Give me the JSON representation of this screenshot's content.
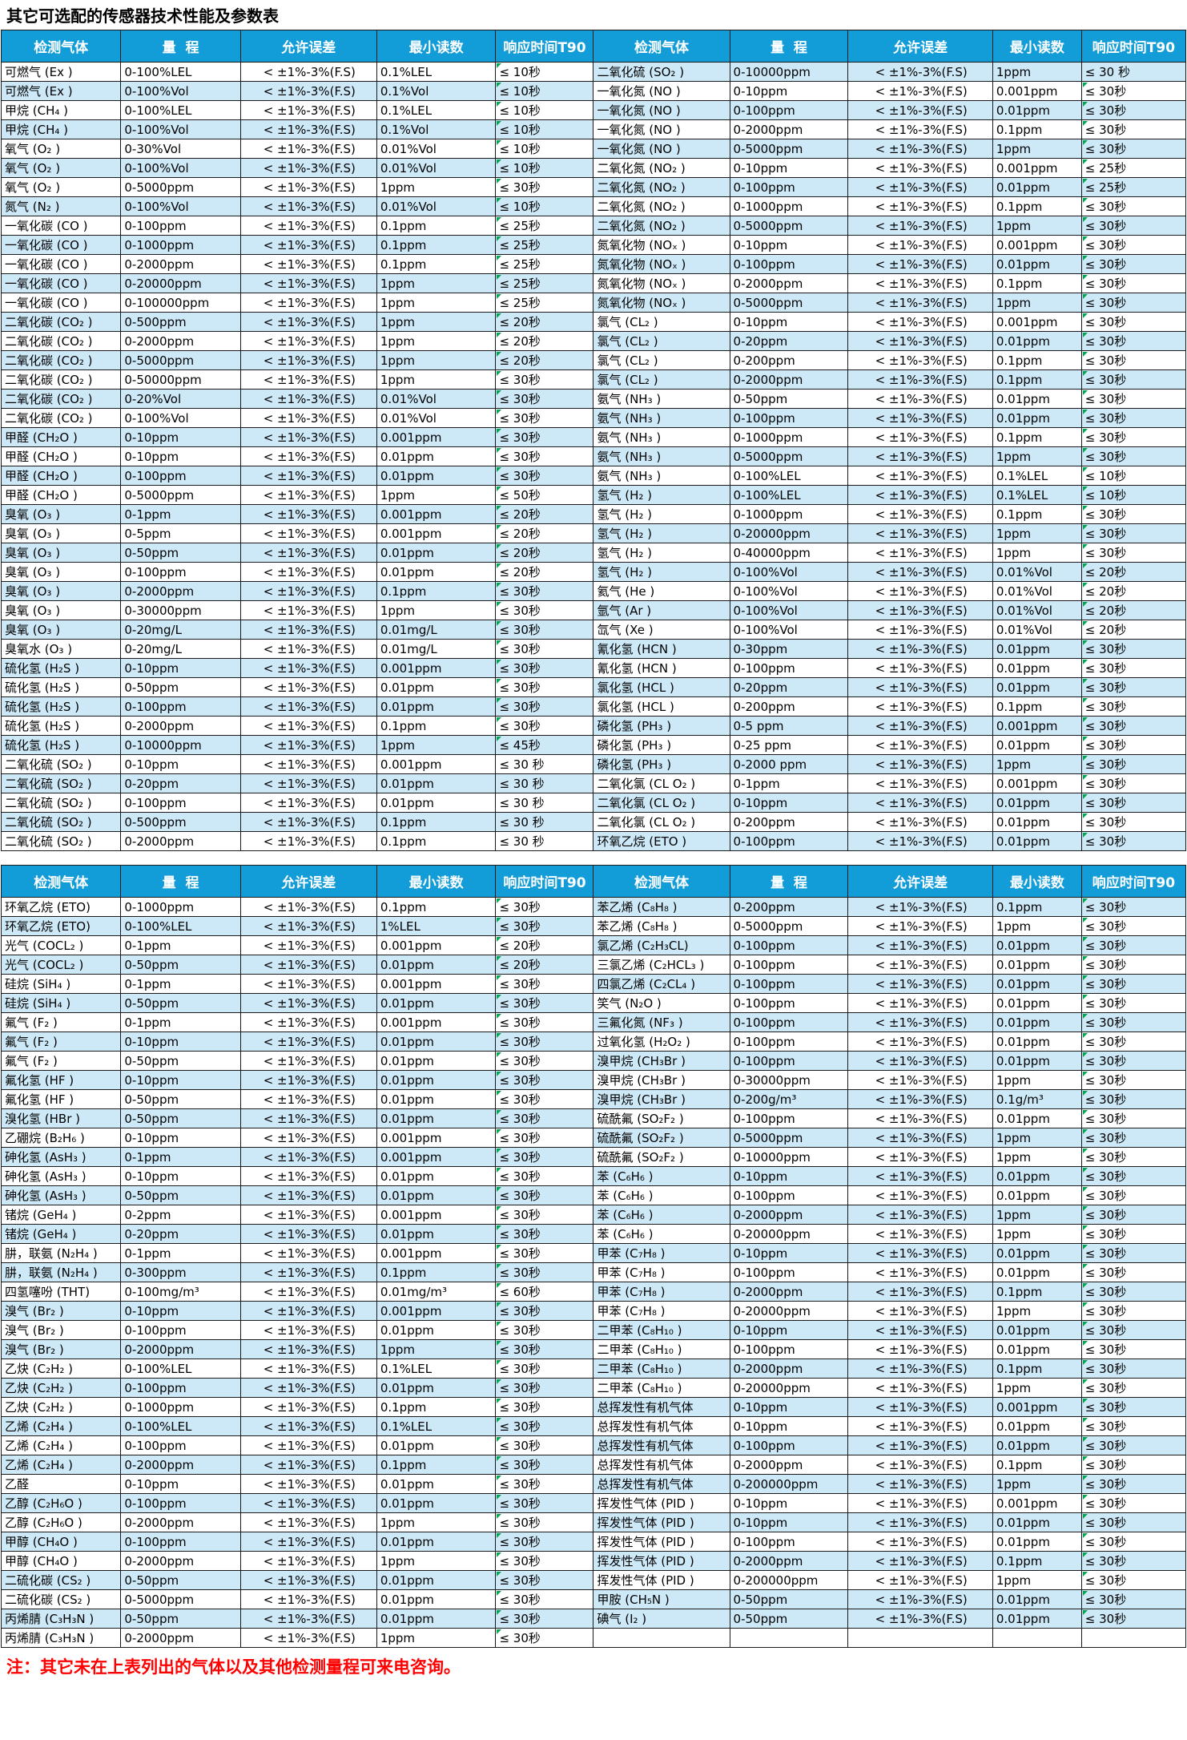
{
  "title": "其它可选配的传感器技术性能及参数表",
  "note": "注：其它未在上表列出的气体以及其他检测量程可来电咨询。",
  "columns": [
    "检测气体",
    "量  程",
    "允许误差",
    "最小读数",
    "响应时间T90"
  ],
  "tolerance": "<  ±1%-3%(F.S)",
  "colors": {
    "header_bg": "#129dd9",
    "row_alt": "#cde8f7",
    "border": "#1a1a1a",
    "note": "#ff0000",
    "marker": "#00a651"
  },
  "tables": [
    {
      "right_extra_blue": [],
      "left": [
        [
          "可燃气 (Ex )",
          "0-100%LEL",
          "0.1%LEL",
          "≤ 10秒"
        ],
        [
          "可燃气 (Ex )",
          "0-100%Vol",
          "0.1%Vol",
          "≤ 10秒"
        ],
        [
          "甲烷 (CH₄ )",
          "0-100%LEL",
          "0.1%LEL",
          "≤ 10秒"
        ],
        [
          "甲烷 (CH₄ )",
          "0-100%Vol",
          "0.1%Vol",
          "≤ 10秒"
        ],
        [
          "氧气 (O₂ )",
          "0-30%Vol",
          "0.01%Vol",
          "≤ 10秒"
        ],
        [
          "氧气 (O₂ )",
          "0-100%Vol",
          "0.01%Vol",
          "≤ 10秒"
        ],
        [
          "氧气 (O₂ )",
          "0-5000ppm",
          "1ppm",
          "≤ 30秒"
        ],
        [
          "氮气 (N₂ )",
          "0-100%Vol",
          "0.01%Vol",
          "≤ 10秒"
        ],
        [
          "一氧化碳 (CO )",
          "0-100ppm",
          "0.1ppm",
          "≤ 25秒"
        ],
        [
          "一氧化碳 (CO )",
          "0-1000ppm",
          "0.1ppm",
          "≤ 25秒"
        ],
        [
          "一氧化碳 (CO )",
          "0-2000ppm",
          "0.1ppm",
          "≤ 25秒"
        ],
        [
          "一氧化碳 (CO )",
          "0-20000ppm",
          "1ppm",
          "≤ 25秒"
        ],
        [
          "一氧化碳 (CO )",
          "0-100000ppm",
          "1ppm",
          "≤ 25秒"
        ],
        [
          "二氧化碳 (CO₂ )",
          "0-500ppm",
          "1ppm",
          "≤ 20秒"
        ],
        [
          "二氧化碳 (CO₂ )",
          "0-2000ppm",
          "1ppm",
          "≤ 20秒"
        ],
        [
          "二氧化碳 (CO₂ )",
          "0-5000ppm",
          "1ppm",
          "≤ 20秒"
        ],
        [
          "二氧化碳 (CO₂ )",
          "0-50000ppm",
          "1ppm",
          "≤ 30秒"
        ],
        [
          "二氧化碳 (CO₂ )",
          "0-20%Vol",
          "0.01%Vol",
          "≤ 30秒"
        ],
        [
          "二氧化碳 (CO₂ )",
          "0-100%Vol",
          "0.01%Vol",
          "≤ 30秒"
        ],
        [
          "甲醛 (CH₂O )",
          "0-10ppm",
          "0.001ppm",
          "≤ 30秒"
        ],
        [
          "甲醛 (CH₂O )",
          "0-10ppm",
          "0.01ppm",
          "≤ 30秒"
        ],
        [
          "甲醛 (CH₂O )",
          "0-100ppm",
          "0.01ppm",
          "≤ 30秒"
        ],
        [
          "甲醛 (CH₂O )",
          "0-5000ppm",
          "1ppm",
          "≤ 50秒"
        ],
        [
          "臭氧 (O₃ )",
          "0-1ppm",
          "0.001ppm",
          "≤ 20秒"
        ],
        [
          "臭氧 (O₃ )",
          "0-5ppm",
          "0.001ppm",
          "≤ 20秒"
        ],
        [
          "臭氧 (O₃ )",
          "0-50ppm",
          "0.01ppm",
          "≤ 20秒"
        ],
        [
          "臭氧 (O₃ )",
          "0-100ppm",
          "0.01ppm",
          "≤ 20秒"
        ],
        [
          "臭氧 (O₃ )",
          "0-2000ppm",
          "0.1ppm",
          "≤ 30秒"
        ],
        [
          "臭氧 (O₃ )",
          "0-30000ppm",
          "1ppm",
          "≤ 30秒"
        ],
        [
          "臭氧 (O₃ )",
          "0-20mg/L",
          "0.01mg/L",
          "≤ 30秒"
        ],
        [
          "臭氧水 (O₃ )",
          "0-20mg/L",
          "0.01mg/L",
          "≤ 30秒"
        ],
        [
          "硫化氢 (H₂S )",
          "0-10ppm",
          "0.001ppm",
          "≤ 30秒"
        ],
        [
          "硫化氢 (H₂S )",
          "0-50ppm",
          "0.01ppm",
          "≤ 30秒"
        ],
        [
          "硫化氢 (H₂S )",
          "0-100ppm",
          "0.01ppm",
          "≤ 30秒"
        ],
        [
          "硫化氢 (H₂S )",
          "0-2000ppm",
          "0.1ppm",
          "≤ 30秒"
        ],
        [
          "硫化氢 (H₂S )",
          "0-10000ppm",
          "1ppm",
          "≤ 45秒"
        ],
        [
          "二氧化硫 (SO₂ )",
          "0-10ppm",
          "0.001ppm",
          "≤ 30 秒"
        ],
        [
          "二氧化硫 (SO₂ )",
          "0-20ppm",
          "0.01ppm",
          "≤ 30 秒"
        ],
        [
          "二氧化硫 (SO₂ )",
          "0-100ppm",
          "0.01ppm",
          "≤ 30 秒"
        ],
        [
          "二氧化硫 (SO₂ )",
          "0-500ppm",
          "0.1ppm",
          "≤ 30 秒"
        ],
        [
          "二氧化硫 (SO₂ )",
          "0-2000ppm",
          "0.1ppm",
          "≤ 30 秒"
        ]
      ],
      "right": [
        [
          "二氧化硫 (SO₂ )",
          "0-10000ppm",
          "1ppm",
          "≤ 30 秒"
        ],
        [
          "一氧化氮 (NO )",
          "0-10ppm",
          "0.001ppm",
          "≤ 30秒"
        ],
        [
          "一氧化氮 (NO )",
          "0-100ppm",
          "0.01ppm",
          "≤ 30秒"
        ],
        [
          "一氧化氮 (NO )",
          "0-2000ppm",
          "0.1ppm",
          "≤ 30秒"
        ],
        [
          "一氧化氮 (NO )",
          "0-5000ppm",
          "1ppm",
          "≤ 30秒"
        ],
        [
          "二氧化氮 (NO₂ )",
          "0-10ppm",
          "0.001ppm",
          "≤ 25秒"
        ],
        [
          "二氧化氮 (NO₂ )",
          "0-100ppm",
          "0.01ppm",
          "≤ 25秒"
        ],
        [
          "二氧化氮 (NO₂ )",
          "0-1000ppm",
          "0.1ppm",
          "≤ 30秒"
        ],
        [
          "二氧化氮 (NO₂ )",
          "0-5000ppm",
          "1ppm",
          "≤ 30秒"
        ],
        [
          "氮氧化物 (NOₓ )",
          "0-10ppm",
          "0.001ppm",
          "≤ 30秒"
        ],
        [
          "氮氧化物 (NOₓ )",
          "0-100ppm",
          "0.01ppm",
          "≤ 30秒"
        ],
        [
          "氮氧化物 (NOₓ )",
          "0-2000ppm",
          "0.1ppm",
          "≤ 30秒"
        ],
        [
          "氮氧化物 (NOₓ )",
          "0-5000ppm",
          "1ppm",
          "≤ 30秒"
        ],
        [
          "氯气 (CL₂ )",
          "0-10ppm",
          "0.001ppm",
          "≤ 30秒"
        ],
        [
          "氯气 (CL₂ )",
          "0-20ppm",
          "0.01ppm",
          "≤ 30秒"
        ],
        [
          "氯气 (CL₂ )",
          "0-200ppm",
          "0.1ppm",
          "≤ 30秒"
        ],
        [
          "氯气 (CL₂ )",
          "0-2000ppm",
          "0.1ppm",
          "≤ 30秒"
        ],
        [
          "氨气 (NH₃ )",
          "0-50ppm",
          "0.01ppm",
          "≤ 30秒"
        ],
        [
          "氨气 (NH₃ )",
          "0-100ppm",
          "0.01ppm",
          "≤ 30秒"
        ],
        [
          "氨气 (NH₃ )",
          "0-1000ppm",
          "0.1ppm",
          "≤ 30秒"
        ],
        [
          "氨气 (NH₃ )",
          "0-5000ppm",
          "1ppm",
          "≤ 30秒"
        ],
        [
          "氨气 (NH₃ )",
          "0-100%LEL",
          "0.1%LEL",
          "≤ 10秒"
        ],
        [
          "氢气 (H₂ )",
          "0-100%LEL",
          "0.1%LEL",
          "≤ 10秒"
        ],
        [
          "氢气 (H₂ )",
          "0-1000ppm",
          "0.1ppm",
          "≤ 30秒"
        ],
        [
          "氢气 (H₂ )",
          "0-20000ppm",
          "1ppm",
          "≤ 30秒"
        ],
        [
          "氢气 (H₂ )",
          "0-40000ppm",
          "1ppm",
          "≤ 30秒"
        ],
        [
          "氢气 (H₂ )",
          "0-100%Vol",
          "0.01%Vol",
          "≤ 20秒"
        ],
        [
          "氦气 (He )",
          "0-100%Vol",
          "0.01%Vol",
          "≤ 20秒"
        ],
        [
          "氩气 (Ar )",
          "0-100%Vol",
          "0.01%Vol",
          "≤ 20秒"
        ],
        [
          "氙气 (Xe )",
          "0-100%Vol",
          "0.01%Vol",
          "≤ 20秒"
        ],
        [
          "氰化氢 (HCN )",
          "0-30ppm",
          "0.01ppm",
          "≤ 30秒"
        ],
        [
          "氰化氢 (HCN )",
          "0-100ppm",
          "0.01ppm",
          "≤ 30秒"
        ],
        [
          "氯化氢 (HCL )",
          "0-20ppm",
          "0.01ppm",
          "≤ 30秒"
        ],
        [
          "氯化氢 (HCL )",
          "0-200ppm",
          "0.1ppm",
          "≤ 30秒"
        ],
        [
          "磷化氢 (PH₃ )",
          "0-5 ppm",
          "0.001ppm",
          "≤ 30秒"
        ],
        [
          "磷化氢 (PH₃ )",
          "0-25 ppm",
          "0.01ppm",
          "≤ 30秒"
        ],
        [
          "磷化氢 (PH₃ )",
          "0-2000 ppm",
          "1ppm",
          "≤ 30秒"
        ],
        [
          "二氧化氯 (CL O₂ )",
          "0-1ppm",
          "0.001ppm",
          "≤ 30秒"
        ],
        [
          "二氧化氯 (CL O₂ )",
          "0-10ppm",
          "0.01ppm",
          "≤ 30秒"
        ],
        [
          "二氧化氯 (CL O₂ )",
          "0-200ppm",
          "0.01ppm",
          "≤ 30秒"
        ],
        [
          "环氧乙烷 (ETO )",
          "0-100ppm",
          "0.01ppm",
          "≤ 30秒"
        ]
      ]
    },
    {
      "right_extra_blue": [
        37
      ],
      "left": [
        [
          "环氧乙烷 (ETO)",
          "0-1000ppm",
          "0.1ppm",
          "≤ 30秒"
        ],
        [
          "环氧乙烷 (ETO)",
          "0-100%LEL",
          "1%LEL",
          "≤ 30秒"
        ],
        [
          "光气 (COCL₂ )",
          "0-1ppm",
          "0.001ppm",
          "≤ 20秒"
        ],
        [
          "光气 (COCL₂ )",
          "0-50ppm",
          "0.01ppm",
          "≤ 20秒"
        ],
        [
          "硅烷 (SiH₄ )",
          "0-1ppm",
          "0.001ppm",
          "≤ 30秒"
        ],
        [
          "硅烷 (SiH₄ )",
          "0-50ppm",
          "0.01ppm",
          "≤ 30秒"
        ],
        [
          "氟气 (F₂ )",
          "0-1ppm",
          "0.001ppm",
          "≤ 30秒"
        ],
        [
          "氟气 (F₂ )",
          "0-10ppm",
          "0.01ppm",
          "≤ 30秒"
        ],
        [
          "氟气 (F₂ )",
          "0-50ppm",
          "0.01ppm",
          "≤ 30秒"
        ],
        [
          "氟化氢 (HF )",
          "0-10ppm",
          "0.01ppm",
          "≤ 30秒"
        ],
        [
          "氟化氢 (HF )",
          "0-50ppm",
          "0.01ppm",
          "≤ 30秒"
        ],
        [
          "溴化氢 (HBr )",
          "0-50ppm",
          "0.01ppm",
          "≤ 30秒"
        ],
        [
          "乙硼烷 (B₂H₆ )",
          "0-10ppm",
          "0.001ppm",
          "≤ 30秒"
        ],
        [
          "砷化氢 (AsH₃ )",
          "0-1ppm",
          "0.001ppm",
          "≤ 30秒"
        ],
        [
          "砷化氢 (AsH₃ )",
          "0-10ppm",
          "0.01ppm",
          "≤ 30秒"
        ],
        [
          "砷化氢 (AsH₃ )",
          "0-50ppm",
          "0.01ppm",
          "≤ 30秒"
        ],
        [
          "锗烷 (GeH₄ )",
          "0-2ppm",
          "0.001ppm",
          "≤ 30秒"
        ],
        [
          "锗烷 (GeH₄ )",
          "0-20ppm",
          "0.01ppm",
          "≤ 30秒"
        ],
        [
          "肼，联氨 (N₂H₄ )",
          "0-1ppm",
          "0.001ppm",
          "≤ 30秒"
        ],
        [
          "肼，联氨 (N₂H₄ )",
          "0-300ppm",
          "0.1ppm",
          "≤ 30秒"
        ],
        [
          "四氢噻吩 (THT)",
          "0-100mg/m³",
          "0.01mg/m³",
          "≤ 60秒"
        ],
        [
          "溴气 (Br₂ )",
          "0-10ppm",
          "0.001ppm",
          "≤ 30秒"
        ],
        [
          "溴气 (Br₂ )",
          "0-100ppm",
          "0.01ppm",
          "≤ 30秒"
        ],
        [
          "溴气 (Br₂ )",
          "0-2000ppm",
          "1ppm",
          "≤ 30秒"
        ],
        [
          "乙炔 (C₂H₂ )",
          "0-100%LEL",
          "0.1%LEL",
          "≤ 30秒"
        ],
        [
          "乙炔 (C₂H₂ )",
          "0-100ppm",
          "0.01ppm",
          "≤ 30秒"
        ],
        [
          "乙炔 (C₂H₂ )",
          "0-1000ppm",
          "0.1ppm",
          "≤ 30秒"
        ],
        [
          "乙烯 (C₂H₄ )",
          "0-100%LEL",
          "0.1%LEL",
          "≤ 30秒"
        ],
        [
          "乙烯 (C₂H₄ )",
          "0-100ppm",
          "0.01ppm",
          "≤ 30秒"
        ],
        [
          "乙烯 (C₂H₄ )",
          "0-2000ppm",
          "0.1ppm",
          "≤ 30秒"
        ],
        [
          "乙醛",
          "0-10ppm",
          "0.01ppm",
          "≤ 30秒"
        ],
        [
          "乙醇 (C₂H₆O )",
          "0-100ppm",
          "0.01ppm",
          "≤ 30秒"
        ],
        [
          "乙醇 (C₂H₆O )",
          "0-2000ppm",
          "1ppm",
          "≤ 30秒"
        ],
        [
          "甲醇 (CH₄O )",
          "0-100ppm",
          "0.01ppm",
          "≤ 30秒"
        ],
        [
          "甲醇 (CH₄O )",
          "0-2000ppm",
          "1ppm",
          "≤ 30秒"
        ],
        [
          "二硫化碳 (CS₂ )",
          "0-50ppm",
          "0.01ppm",
          "≤ 30秒"
        ],
        [
          "二硫化碳 (CS₂ )",
          "0-5000ppm",
          "0.01ppm",
          "≤ 30秒"
        ],
        [
          "丙烯腈 (C₃H₃N )",
          "0-50ppm",
          "0.01ppm",
          "≤ 30秒"
        ],
        [
          "丙烯腈 (C₃H₃N )",
          "0-2000ppm",
          "1ppm",
          "≤ 30秒"
        ]
      ],
      "right": [
        [
          "苯乙烯 (C₈H₈ )",
          "0-200ppm",
          "0.1ppm",
          "≤ 30秒"
        ],
        [
          "苯乙烯 (C₈H₈ )",
          "0-5000ppm",
          "1ppm",
          "≤ 30秒"
        ],
        [
          "氯乙烯 (C₂H₃CL)",
          "0-100ppm",
          "0.01ppm",
          "≤ 30秒"
        ],
        [
          "三氯乙烯 (C₂HCL₃ )",
          "0-100ppm",
          "0.01ppm",
          "≤ 30秒"
        ],
        [
          "四氯乙烯 (C₂CL₄ )",
          "0-100ppm",
          "0.01ppm",
          "≤ 30秒"
        ],
        [
          "笑气 (N₂O )",
          "0-100ppm",
          "0.01ppm",
          "≤ 30秒"
        ],
        [
          "三氟化氮 (NF₃ )",
          "0-100ppm",
          "0.01ppm",
          "≤ 30秒"
        ],
        [
          "过氧化氢 (H₂O₂ )",
          "0-100ppm",
          "0.01ppm",
          "≤ 30秒"
        ],
        [
          "溴甲烷 (CH₃Br )",
          "0-100ppm",
          "0.01ppm",
          "≤ 30秒"
        ],
        [
          "溴甲烷 (CH₃Br )",
          "0-30000ppm",
          "1ppm",
          "≤ 30秒"
        ],
        [
          "溴甲烷 (CH₃Br )",
          "0-200g/m³",
          "0.1g/m³",
          "≤ 30秒"
        ],
        [
          "硫酰氟 (SO₂F₂ )",
          "0-100ppm",
          "0.01ppm",
          "≤ 30秒"
        ],
        [
          "硫酰氟 (SO₂F₂ )",
          "0-5000ppm",
          "1ppm",
          "≤ 30秒"
        ],
        [
          "硫酰氟 (SO₂F₂ )",
          "0-10000ppm",
          "1ppm",
          "≤ 30秒"
        ],
        [
          "苯 (C₆H₆ )",
          "0-10ppm",
          "0.01ppm",
          "≤ 30秒"
        ],
        [
          "苯 (C₆H₆ )",
          "0-100ppm",
          "0.01ppm",
          "≤ 30秒"
        ],
        [
          "苯 (C₆H₆ )",
          "0-2000ppm",
          "1ppm",
          "≤ 30秒"
        ],
        [
          "苯 (C₆H₆ )",
          "0-20000ppm",
          "1ppm",
          "≤ 30秒"
        ],
        [
          "甲苯 (C₇H₈ )",
          "0-10ppm",
          "0.01ppm",
          "≤ 30秒"
        ],
        [
          "甲苯 (C₇H₈ )",
          "0-100ppm",
          "0.01ppm",
          "≤ 30秒"
        ],
        [
          "甲苯 (C₇H₈ )",
          "0-2000ppm",
          "0.1ppm",
          "≤ 30秒"
        ],
        [
          "甲苯 (C₇H₈ )",
          "0-20000ppm",
          "1ppm",
          "≤ 30秒"
        ],
        [
          "二甲苯 (C₈H₁₀ )",
          "0-10ppm",
          "0.01ppm",
          "≤ 30秒"
        ],
        [
          "二甲苯 (C₈H₁₀ )",
          "0-100ppm",
          "0.01ppm",
          "≤ 30秒"
        ],
        [
          "二甲苯 (C₈H₁₀ )",
          "0-2000ppm",
          "0.1ppm",
          "≤ 30秒"
        ],
        [
          "二甲苯 (C₈H₁₀ )",
          "0-20000ppm",
          "1ppm",
          "≤ 30秒"
        ],
        [
          "总挥发性有机气体",
          "0-10ppm",
          "0.001ppm",
          "≤ 30秒"
        ],
        [
          "总挥发性有机气体",
          "0-10ppm",
          "0.01ppm",
          "≤ 30秒"
        ],
        [
          "总挥发性有机气体",
          "0-100ppm",
          "0.01ppm",
          "≤ 30秒"
        ],
        [
          "总挥发性有机气体",
          "0-2000ppm",
          "0.1ppm",
          "≤ 30秒"
        ],
        [
          "总挥发性有机气体",
          "0-200000ppm",
          "1ppm",
          "≤ 30秒"
        ],
        [
          "挥发性气体 (PID )",
          "0-10ppm",
          "0.001ppm",
          "≤ 30秒"
        ],
        [
          "挥发性气体 (PID )",
          "0-10ppm",
          "0.01ppm",
          "≤ 30秒"
        ],
        [
          "挥发性气体 (PID )",
          "0-100ppm",
          "0.01ppm",
          "≤ 30秒"
        ],
        [
          "挥发性气体 (PID )",
          "0-2000ppm",
          "0.1ppm",
          "≤ 30秒"
        ],
        [
          "挥发性气体 (PID )",
          "0-200000ppm",
          "1ppm",
          "≤ 30秒"
        ],
        [
          "甲胺 (CH₅N )",
          "0-50ppm",
          "0.01ppm",
          "≤ 30秒"
        ],
        [
          "碘气 (I₂ )",
          "0-50ppm",
          "0.01ppm",
          "≤ 30秒"
        ],
        [
          "",
          "",
          "",
          ""
        ]
      ]
    }
  ]
}
